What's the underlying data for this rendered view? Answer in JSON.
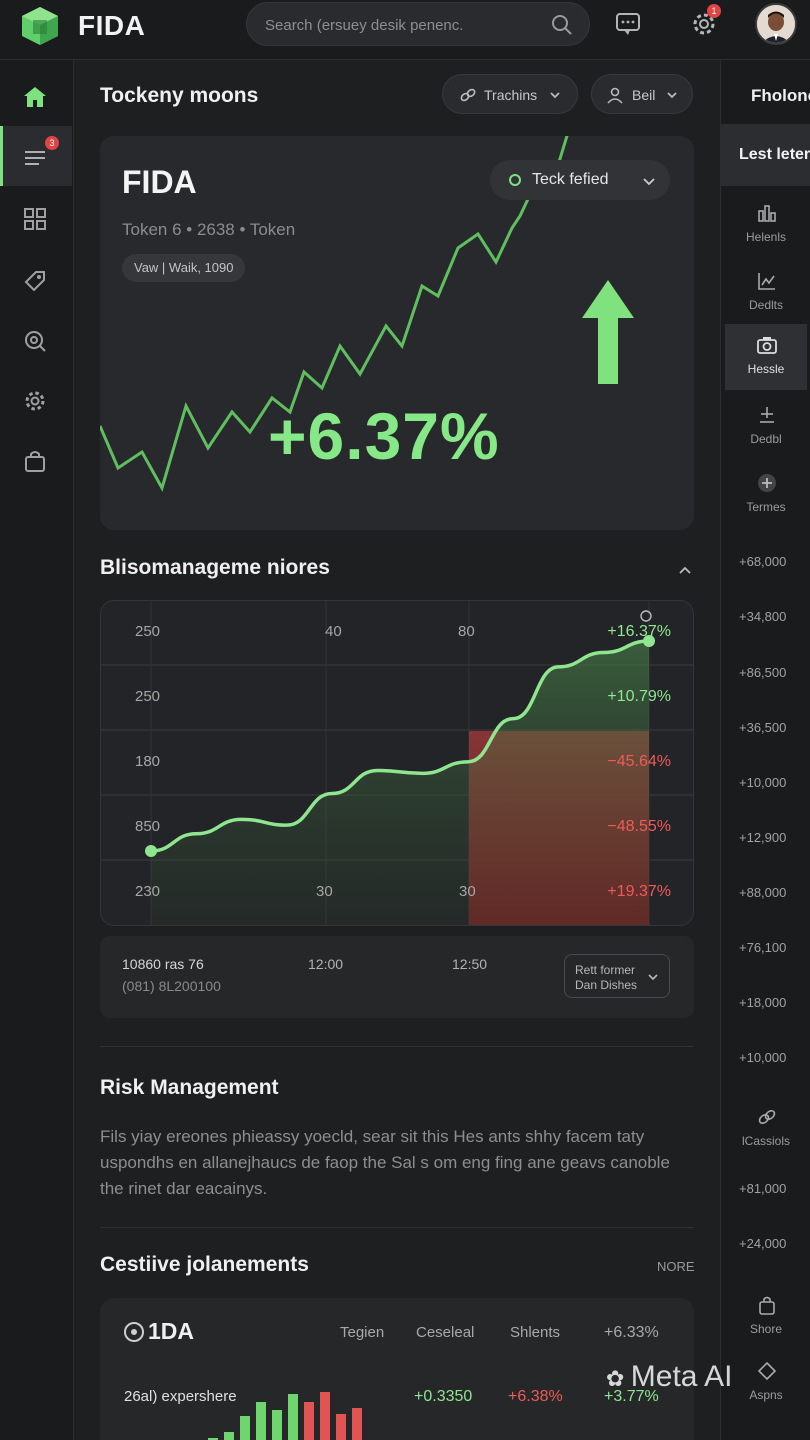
{
  "app": {
    "brand": "FIDA"
  },
  "topbar": {
    "search_placeholder": "Search (ersuey desik penenc.",
    "settings_badge": "1"
  },
  "sidebar": {
    "items": [
      {
        "icon": "home-icon",
        "active": false
      },
      {
        "icon": "menu-icon",
        "active": true,
        "badge": "3"
      },
      {
        "icon": "grid-icon",
        "active": false
      },
      {
        "icon": "tag-icon",
        "active": false
      },
      {
        "icon": "search-icon",
        "active": false
      },
      {
        "icon": "gear-icon",
        "active": false
      },
      {
        "icon": "bag-icon",
        "active": false
      }
    ]
  },
  "main": {
    "title": "Tockeny moons",
    "filter1": "Trachins",
    "filter2": "Beil",
    "hero": {
      "title": "FIDA",
      "subtitle": "Token 6 • 2638  •  Token",
      "chip": "Vaw | Waik, 1090",
      "dropdown": "Teck fefied",
      "change": "+6.37%"
    },
    "section2_title": "Blisomanageme niores",
    "chart": {
      "col_labels": [
        "40",
        "80"
      ],
      "row_labels": [
        "250",
        "250",
        "180",
        "850",
        "230"
      ],
      "bottom_labels": [
        "30",
        "30"
      ],
      "values": [
        {
          "text": "+16.37%",
          "tone": "pos"
        },
        {
          "text": "+10.79%",
          "tone": "pos"
        },
        {
          "text": "−45.64%",
          "tone": "neg"
        },
        {
          "text": "−48.55%",
          "tone": "neg"
        },
        {
          "text": "+19.37%",
          "tone": "neg"
        }
      ]
    },
    "chart_data": {
      "type": "line",
      "x": [
        0,
        1,
        2,
        3,
        4,
        5,
        6,
        7,
        8,
        9,
        10,
        11
      ],
      "y": [
        1.0,
        1.6,
        2.1,
        1.9,
        3.0,
        3.8,
        3.7,
        4.1,
        5.6,
        7.4,
        7.9,
        8.3
      ]
    },
    "time_row": {
      "left1": "10860  ras 76",
      "left2": "(081) 8L200100",
      "t1": "12:00",
      "t2": "12:50",
      "drop1": "Rett former",
      "drop2": "Dan Dishes"
    },
    "risk": {
      "title": "Risk Management",
      "text": "Fils yiay ereones phieassy yoecld, sear sit this Hes ants shhy facem taty uspondhs en allanejhaucs de faop the Sal s om eng fing ane geavs canoble the rinet dar eacainys."
    },
    "cest": {
      "title": "Cestiive jolanements",
      "more": "NORE",
      "table": {
        "name": "1DA",
        "headers": [
          "Tegien",
          "Ceseleal",
          "Shlents",
          "+6.33%"
        ],
        "row_label": "26al) expershere",
        "row_values": [
          "+0.3350",
          "+6.38%",
          "+3.77%"
        ]
      }
    }
  },
  "right_panel": {
    "heading": "Fholonc",
    "tab": "Lest leters",
    "items": [
      {
        "icon": "chart-icon",
        "label": "Helenls"
      },
      {
        "icon": "line-chart-icon",
        "label": "Dedlts"
      },
      {
        "icon": "camera-icon",
        "label": "Hessle"
      },
      {
        "icon": "download-icon",
        "label": "Dedbl"
      },
      {
        "icon": "plus-circle-icon",
        "label": "Termes"
      }
    ],
    "numbers": [
      "+68,000",
      "+34,800",
      "+86,500",
      "+36,500",
      "+10,000",
      "+12,900",
      "+88,000",
      "+76,100",
      "+18,000",
      "+10,000"
    ],
    "bottom_items": [
      {
        "icon": "link-icon",
        "label": "lCassiols"
      },
      {
        "icon": "bag-icon",
        "label": "Shore"
      },
      {
        "icon": "diamond-icon",
        "label": "Aspns"
      }
    ],
    "bottom_numbers": [
      "+81,000",
      "+24,000"
    ]
  },
  "watermark": "Meta AI",
  "colors": {
    "accent": "#86e886",
    "negative": "#ef5a5a",
    "bg": "#1e1f21"
  }
}
